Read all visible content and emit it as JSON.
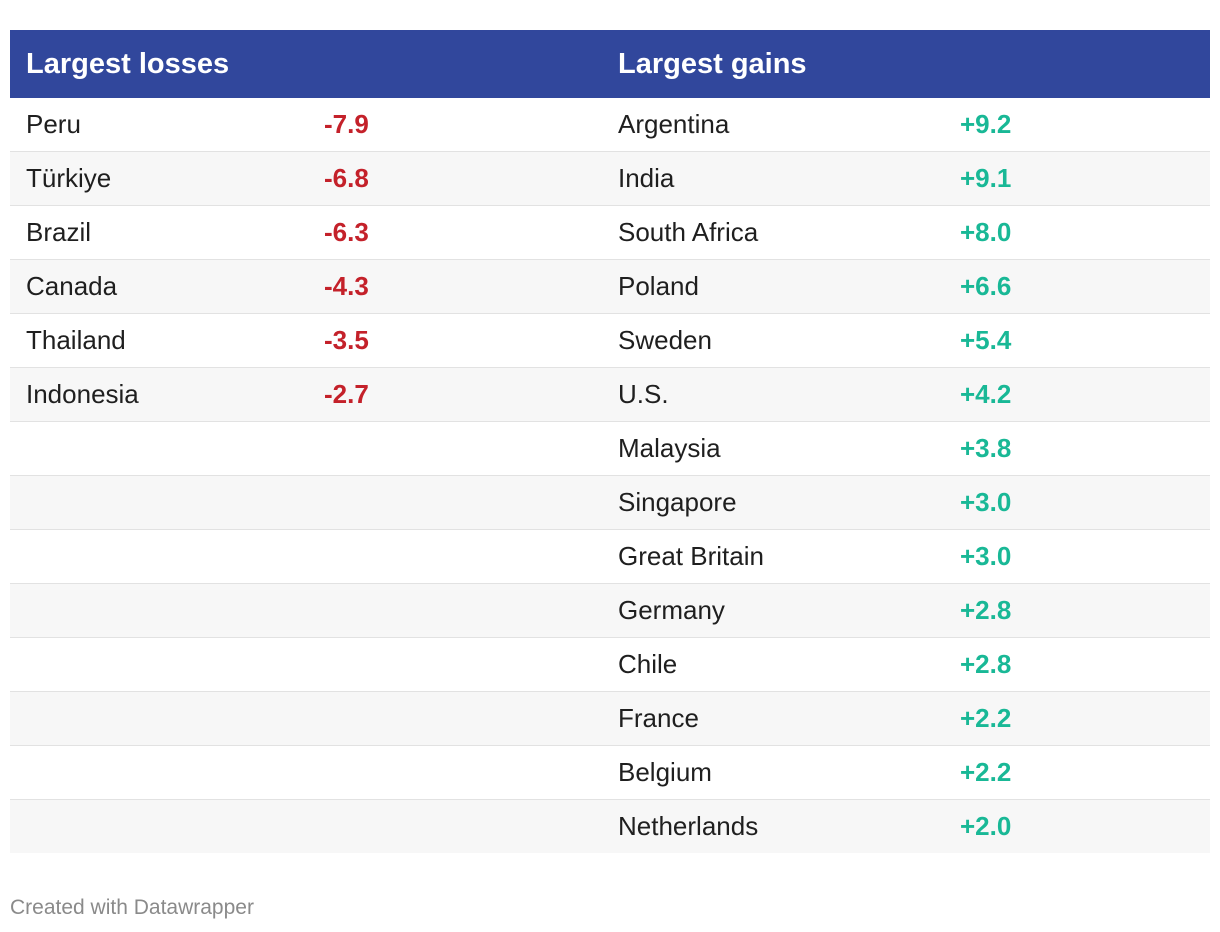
{
  "chart_data": {
    "type": "table",
    "columns": [
      "Largest losses",
      "",
      "Largest gains",
      ""
    ],
    "colors": {
      "header_bg": "#31479c",
      "loss": "#c4212a",
      "gain": "#19b896"
    },
    "losses": [
      {
        "country": "Peru",
        "value": "-7.9"
      },
      {
        "country": "Türkiye",
        "value": "-6.8"
      },
      {
        "country": "Brazil",
        "value": "-6.3"
      },
      {
        "country": "Canada",
        "value": "-4.3"
      },
      {
        "country": "Thailand",
        "value": "-3.5"
      },
      {
        "country": "Indonesia",
        "value": "-2.7"
      }
    ],
    "gains": [
      {
        "country": "Argentina",
        "value": "+9.2"
      },
      {
        "country": "India",
        "value": "+9.1"
      },
      {
        "country": "South Africa",
        "value": "+8.0"
      },
      {
        "country": "Poland",
        "value": "+6.6"
      },
      {
        "country": "Sweden",
        "value": "+5.4"
      },
      {
        "country": "U.S.",
        "value": "+4.2"
      },
      {
        "country": "Malaysia",
        "value": "+3.8"
      },
      {
        "country": "Singapore",
        "value": "+3.0"
      },
      {
        "country": "Great Britain",
        "value": "+3.0"
      },
      {
        "country": "Germany",
        "value": "+2.8"
      },
      {
        "country": "Chile",
        "value": "+2.8"
      },
      {
        "country": "France",
        "value": "+2.2"
      },
      {
        "country": "Belgium",
        "value": "+2.2"
      },
      {
        "country": "Netherlands",
        "value": "+2.0"
      }
    ]
  },
  "footer": {
    "credit": "Created with Datawrapper"
  }
}
